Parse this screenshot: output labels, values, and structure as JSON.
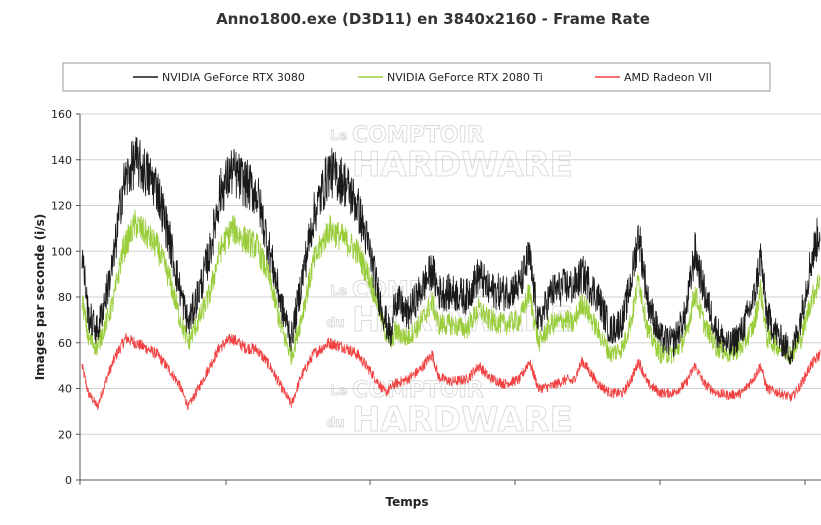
{
  "chart_data": {
    "type": "line",
    "title": "Anno1800.exe (D3D11) en 3840x2160 - Frame Rate",
    "xlabel": "Temps",
    "ylabel": "Images par seconde (i/s)",
    "ylim": [
      0,
      160
    ],
    "yticks": [
      0,
      20,
      40,
      60,
      80,
      100,
      120,
      140,
      160
    ],
    "grid": "horizontal",
    "legend_placement": "top",
    "watermark": [
      "Le",
      "COMPTOIR",
      "du",
      "HARDWARE"
    ],
    "series": [
      {
        "name": "NVIDIA GeForce RTX 3080",
        "color": "#1a1a1a",
        "noise": 9,
        "keypoints": [
          [
            0,
            100
          ],
          [
            2,
            72
          ],
          [
            5,
            65
          ],
          [
            10,
            95
          ],
          [
            13,
            128
          ],
          [
            17,
            140
          ],
          [
            20,
            135
          ],
          [
            24,
            128
          ],
          [
            28,
            105
          ],
          [
            31,
            85
          ],
          [
            34,
            68
          ],
          [
            38,
            85
          ],
          [
            41,
            100
          ],
          [
            44,
            125
          ],
          [
            48,
            135
          ],
          [
            52,
            130
          ],
          [
            56,
            125
          ],
          [
            60,
            100
          ],
          [
            64,
            75
          ],
          [
            67,
            62
          ],
          [
            70,
            85
          ],
          [
            74,
            115
          ],
          [
            79,
            135
          ],
          [
            84,
            130
          ],
          [
            88,
            120
          ],
          [
            92,
            100
          ],
          [
            95,
            80
          ],
          [
            97,
            70
          ],
          [
            99,
            62
          ],
          [
            100,
            80
          ],
          [
            104,
            72
          ],
          [
            108,
            82
          ],
          [
            112,
            92
          ],
          [
            114,
            82
          ],
          [
            118,
            82
          ],
          [
            123,
            80
          ],
          [
            127,
            90
          ],
          [
            130,
            83
          ],
          [
            135,
            82
          ],
          [
            140,
            85
          ],
          [
            143,
            98
          ],
          [
            146,
            68
          ],
          [
            150,
            82
          ],
          [
            155,
            85
          ],
          [
            157,
            84
          ],
          [
            160,
            90
          ],
          [
            165,
            80
          ],
          [
            169,
            65
          ],
          [
            173,
            70
          ],
          [
            176,
            90
          ],
          [
            178,
            108
          ],
          [
            181,
            78
          ],
          [
            185,
            62
          ],
          [
            189,
            60
          ],
          [
            193,
            72
          ],
          [
            196,
            100
          ],
          [
            199,
            82
          ],
          [
            203,
            65
          ],
          [
            207,
            58
          ],
          [
            211,
            65
          ],
          [
            215,
            80
          ],
          [
            217,
            98
          ],
          [
            219,
            72
          ],
          [
            223,
            62
          ],
          [
            227,
            55
          ],
          [
            230,
            72
          ],
          [
            233,
            95
          ],
          [
            236,
            110
          ]
        ]
      },
      {
        "name": "NVIDIA GeForce RTX 2080 Ti",
        "color": "#9acd3c",
        "noise": 6,
        "keypoints": [
          [
            0,
            80
          ],
          [
            2,
            62
          ],
          [
            5,
            58
          ],
          [
            10,
            78
          ],
          [
            13,
            100
          ],
          [
            17,
            112
          ],
          [
            20,
            108
          ],
          [
            24,
            102
          ],
          [
            28,
            88
          ],
          [
            31,
            72
          ],
          [
            34,
            60
          ],
          [
            38,
            72
          ],
          [
            41,
            82
          ],
          [
            44,
            100
          ],
          [
            48,
            110
          ],
          [
            52,
            105
          ],
          [
            56,
            102
          ],
          [
            60,
            88
          ],
          [
            64,
            65
          ],
          [
            67,
            54
          ],
          [
            70,
            70
          ],
          [
            74,
            95
          ],
          [
            79,
            110
          ],
          [
            84,
            105
          ],
          [
            88,
            100
          ],
          [
            92,
            88
          ],
          [
            95,
            75
          ],
          [
            97,
            65
          ],
          [
            99,
            60
          ],
          [
            100,
            65
          ],
          [
            104,
            62
          ],
          [
            108,
            68
          ],
          [
            112,
            78
          ],
          [
            114,
            68
          ],
          [
            118,
            68
          ],
          [
            123,
            66
          ],
          [
            127,
            75
          ],
          [
            130,
            70
          ],
          [
            135,
            68
          ],
          [
            140,
            70
          ],
          [
            143,
            82
          ],
          [
            146,
            60
          ],
          [
            150,
            68
          ],
          [
            155,
            70
          ],
          [
            157,
            68
          ],
          [
            160,
            78
          ],
          [
            165,
            65
          ],
          [
            169,
            55
          ],
          [
            173,
            58
          ],
          [
            176,
            72
          ],
          [
            178,
            88
          ],
          [
            181,
            65
          ],
          [
            185,
            55
          ],
          [
            189,
            55
          ],
          [
            193,
            62
          ],
          [
            196,
            82
          ],
          [
            199,
            68
          ],
          [
            203,
            58
          ],
          [
            207,
            55
          ],
          [
            211,
            58
          ],
          [
            215,
            68
          ],
          [
            217,
            84
          ],
          [
            219,
            62
          ],
          [
            223,
            58
          ],
          [
            227,
            55
          ],
          [
            230,
            62
          ],
          [
            233,
            78
          ],
          [
            236,
            88
          ]
        ]
      },
      {
        "name": "AMD Radeon VII",
        "color": "#f04040",
        "noise": 3.5,
        "keypoints": [
          [
            0,
            50
          ],
          [
            2,
            38
          ],
          [
            5,
            32
          ],
          [
            8,
            45
          ],
          [
            11,
            55
          ],
          [
            14,
            62
          ],
          [
            17,
            60
          ],
          [
            20,
            58
          ],
          [
            24,
            55
          ],
          [
            28,
            48
          ],
          [
            31,
            42
          ],
          [
            34,
            32
          ],
          [
            38,
            42
          ],
          [
            41,
            50
          ],
          [
            44,
            58
          ],
          [
            48,
            62
          ],
          [
            52,
            58
          ],
          [
            56,
            57
          ],
          [
            60,
            50
          ],
          [
            64,
            40
          ],
          [
            67,
            33
          ],
          [
            70,
            45
          ],
          [
            74,
            55
          ],
          [
            79,
            60
          ],
          [
            84,
            58
          ],
          [
            88,
            55
          ],
          [
            92,
            48
          ],
          [
            95,
            42
          ],
          [
            97,
            38
          ],
          [
            100,
            42
          ],
          [
            104,
            44
          ],
          [
            108,
            48
          ],
          [
            112,
            55
          ],
          [
            114,
            45
          ],
          [
            118,
            43
          ],
          [
            123,
            44
          ],
          [
            127,
            50
          ],
          [
            130,
            45
          ],
          [
            135,
            42
          ],
          [
            140,
            44
          ],
          [
            143,
            52
          ],
          [
            146,
            40
          ],
          [
            150,
            41
          ],
          [
            155,
            44
          ],
          [
            157,
            43
          ],
          [
            160,
            52
          ],
          [
            165,
            42
          ],
          [
            169,
            38
          ],
          [
            173,
            38
          ],
          [
            176,
            45
          ],
          [
            178,
            52
          ],
          [
            181,
            42
          ],
          [
            185,
            38
          ],
          [
            189,
            38
          ],
          [
            193,
            42
          ],
          [
            196,
            50
          ],
          [
            199,
            42
          ],
          [
            203,
            38
          ],
          [
            207,
            37
          ],
          [
            211,
            38
          ],
          [
            215,
            45
          ],
          [
            217,
            50
          ],
          [
            219,
            40
          ],
          [
            223,
            38
          ],
          [
            227,
            36
          ],
          [
            230,
            42
          ],
          [
            233,
            50
          ],
          [
            236,
            55
          ]
        ]
      }
    ]
  }
}
